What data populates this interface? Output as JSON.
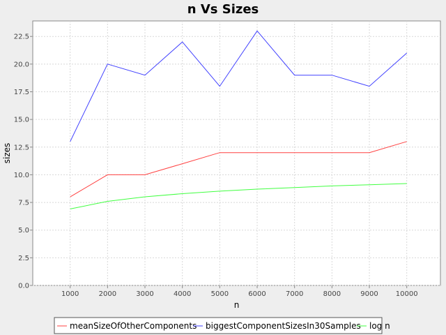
{
  "chart_data": {
    "type": "line",
    "title": "n Vs Sizes",
    "xlabel": "n",
    "ylabel": "sizes",
    "x": [
      1000,
      2000,
      3000,
      4000,
      5000,
      6000,
      7000,
      8000,
      9000,
      10000
    ],
    "x_tick_labels": [
      "1000",
      "2000",
      "3000",
      "4000",
      "5000",
      "6000",
      "7000",
      "8000",
      "9000",
      "10000"
    ],
    "y_tick_labels": [
      "0.0",
      "2.5",
      "5.0",
      "7.5",
      "10.0",
      "12.5",
      "15.0",
      "17.5",
      "20.0",
      "22.5"
    ],
    "y_ticks": [
      0,
      2.5,
      5,
      7.5,
      10,
      12.5,
      15,
      17.5,
      20,
      22.5
    ],
    "xlim": [
      0,
      10900
    ],
    "ylim": [
      0,
      23.9
    ],
    "grid": true,
    "legend_position": "bottom",
    "series": [
      {
        "name": "meanSizeOfOtherComponents",
        "color": "#ff4040",
        "values": [
          8,
          10,
          10,
          11,
          12,
          12,
          12,
          12,
          12,
          13
        ]
      },
      {
        "name": "biggestComponentSizesIn30Samples",
        "color": "#4040ff",
        "values": [
          13,
          20,
          19,
          22,
          18,
          23,
          19,
          19,
          18,
          21
        ]
      },
      {
        "name": "log n",
        "color": "#40ff40",
        "values": [
          6.91,
          7.6,
          8.01,
          8.29,
          8.52,
          8.7,
          8.85,
          8.99,
          9.1,
          9.21
        ]
      }
    ]
  }
}
